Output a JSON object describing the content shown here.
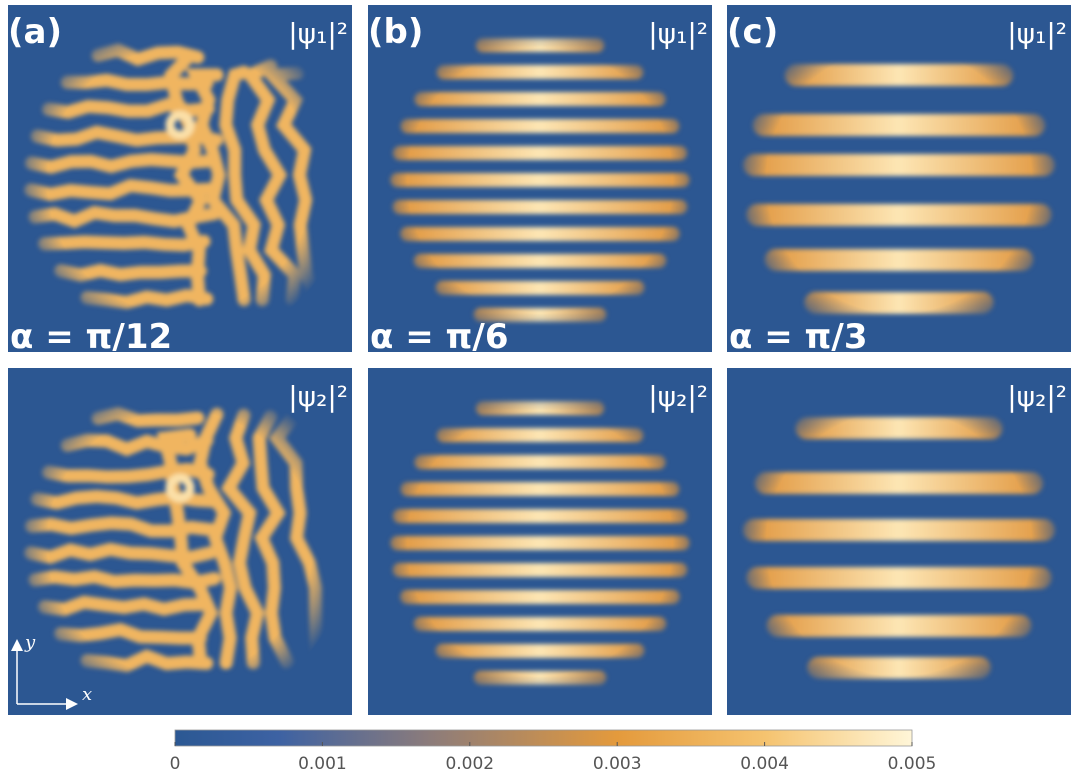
{
  "panels": [
    {
      "label": "(a)",
      "alpha": "α = π/12",
      "top_label": "|ψ₁|²",
      "bottom_label": "|ψ₂|²"
    },
    {
      "label": "(b)",
      "alpha": "α = π/6",
      "top_label": "|ψ₁|²",
      "bottom_label": "|ψ₂|²"
    },
    {
      "label": "(c)",
      "alpha": "α = π/3",
      "top_label": "|ψ₁|²",
      "bottom_label": "|ψ₂|²"
    }
  ],
  "axes_indicator": {
    "x": "x",
    "y": "y"
  },
  "colorbar": {
    "range": [
      0,
      0.005
    ],
    "ticks": [
      0,
      0.001,
      0.002,
      0.003,
      0.004,
      0.005
    ]
  }
}
